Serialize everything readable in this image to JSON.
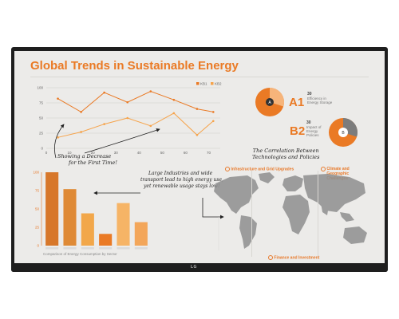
{
  "dashboard": {
    "title": "Global Trends in Sustainable Energy",
    "brand_color": "#ea7a25",
    "light_color": "#f6a34a",
    "logo": "LG"
  },
  "line_chart": {
    "type": "line",
    "legend": [
      "KB1",
      "KB2"
    ],
    "x_ticks": [
      "0",
      "10",
      "20",
      "30",
      "40",
      "50",
      "60",
      "70"
    ],
    "y_ticks": [
      "0",
      "25",
      "50",
      "75",
      "100"
    ],
    "xlim": [
      0,
      75
    ],
    "ylim": [
      0,
      100
    ],
    "series": [
      {
        "name": "KB1",
        "x": [
          5,
          15,
          25,
          35,
          45,
          55,
          65,
          72
        ],
        "values": [
          82,
          60,
          92,
          76,
          94,
          80,
          65,
          60
        ]
      },
      {
        "name": "KB2",
        "x": [
          5,
          15,
          25,
          35,
          45,
          55,
          65,
          72
        ],
        "values": [
          18,
          27,
          40,
          50,
          37,
          58,
          22,
          45
        ]
      }
    ]
  },
  "bar_chart": {
    "type": "bar",
    "y_ticks": [
      "0",
      "25",
      "50",
      "75",
      "100"
    ],
    "ylim": [
      0,
      100
    ],
    "values": [
      100,
      77,
      44,
      16,
      58,
      32
    ],
    "colors": [
      "#d7772a",
      "#df8a36",
      "#f2a74a",
      "#ea7a25",
      "#f6b466",
      "#f3a65a"
    ],
    "caption": "Comparison of Energy Consumption by Sector"
  },
  "annotations": {
    "line_note_1": "Showing a Decrease",
    "line_note_2": "for the First Time!",
    "bar_note_1": "Large Industries and wide",
    "bar_note_2": "transport lead to high energy use,",
    "bar_note_3": "yet renewable usage stays low!",
    "map_note_1": "The Correlation Between",
    "map_note_2": "Technologies and Policies"
  },
  "kpis": [
    {
      "big": "A1",
      "pie_letter": "A",
      "value": "30",
      "desc": "Efficiency in Energy Storage",
      "fraction": 0.3
    },
    {
      "big": "B2",
      "pie_letter": "B",
      "value": "30",
      "desc": "Impact of Energy Policies",
      "fraction": 0.3
    }
  ],
  "map_labels": {
    "top_left": "Infrastructure and Grid Upgrades",
    "top_right": "Climate and Geographic Challenges",
    "bottom": "Finance and Investment"
  }
}
